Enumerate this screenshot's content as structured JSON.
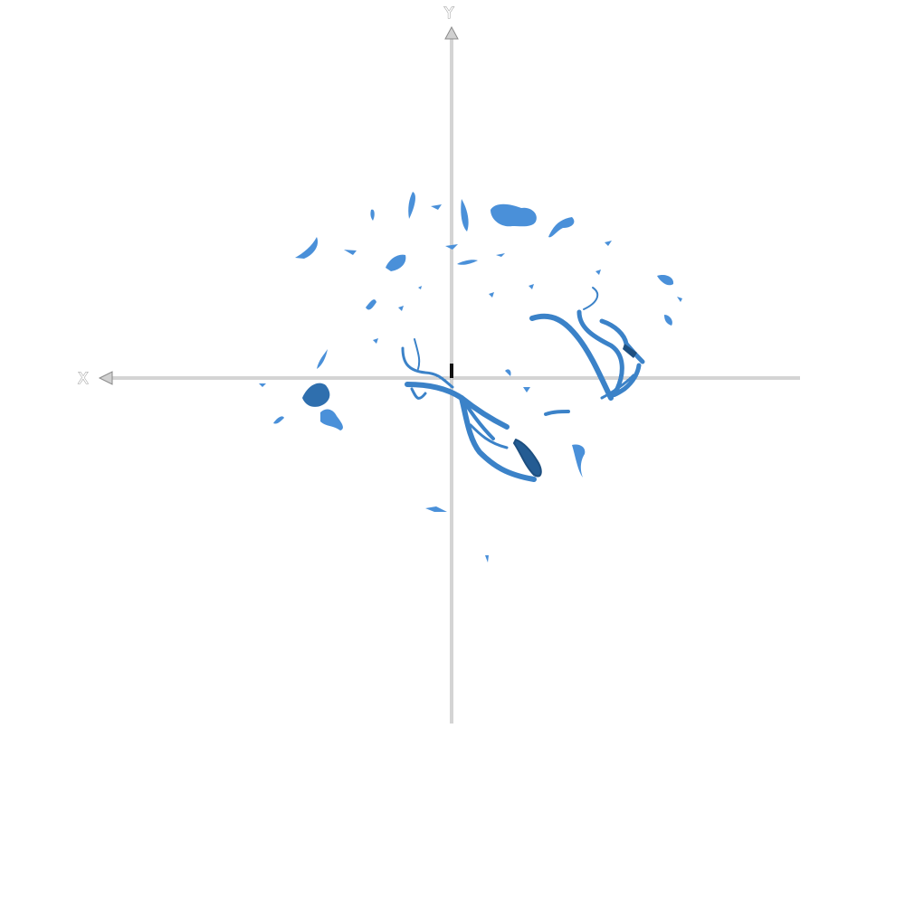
{
  "viewer": {
    "axes": {
      "x_label": "X",
      "y_label": "Y"
    },
    "model": {
      "color": "#4a90d9",
      "shade_color": "#2f6fae",
      "dark_color": "#1d4f80"
    },
    "axis_color": "#a8a8a8"
  }
}
